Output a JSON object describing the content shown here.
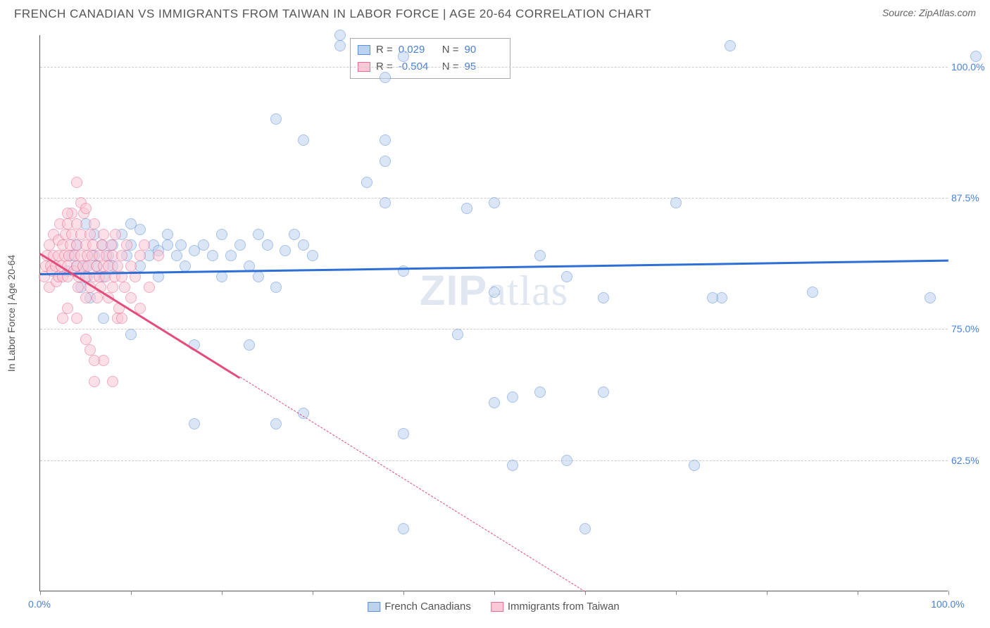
{
  "title": "FRENCH CANADIAN VS IMMIGRANTS FROM TAIWAN IN LABOR FORCE | AGE 20-64 CORRELATION CHART",
  "source": "Source: ZipAtlas.com",
  "watermark_a": "ZIP",
  "watermark_b": "atlas",
  "chart": {
    "type": "scatter",
    "xlim": [
      0,
      100
    ],
    "ylim": [
      50,
      103
    ],
    "x_axis_label_min": "0.0%",
    "x_axis_label_max": "100.0%",
    "y_axis_title": "In Labor Force | Age 20-64",
    "y_ticks": [
      {
        "v": 62.5,
        "label": "62.5%"
      },
      {
        "v": 75.0,
        "label": "75.0%"
      },
      {
        "v": 87.5,
        "label": "87.5%"
      },
      {
        "v": 100.0,
        "label": "100.0%"
      }
    ],
    "x_tick_positions": [
      0,
      10,
      20,
      30,
      40,
      50,
      60,
      70,
      80,
      90,
      100
    ],
    "grid_color": "#cccccc",
    "background_color": "#ffffff",
    "series": [
      {
        "id": "french",
        "name": "French Canadians",
        "marker_fill": "#bcd3f0",
        "marker_stroke": "#5f8fd6",
        "line_color": "#2e6fd6",
        "r_value": "0.029",
        "n_value": "90",
        "trend": {
          "x1": 0,
          "y1": 80.3,
          "x2": 100,
          "y2": 81.6,
          "solid_until_x": 100
        },
        "points": [
          [
            3,
            80.5
          ],
          [
            3.5,
            82
          ],
          [
            4,
            81
          ],
          [
            4,
            83
          ],
          [
            4.5,
            79
          ],
          [
            5,
            81
          ],
          [
            5,
            85
          ],
          [
            5.2,
            80
          ],
          [
            5.5,
            78
          ],
          [
            6,
            82
          ],
          [
            6,
            84
          ],
          [
            6.3,
            81
          ],
          [
            6.8,
            83
          ],
          [
            7,
            80
          ],
          [
            7.5,
            82
          ],
          [
            8,
            81
          ],
          [
            8,
            83
          ],
          [
            9,
            84
          ],
          [
            9.5,
            82
          ],
          [
            10,
            83
          ],
          [
            10,
            85
          ],
          [
            11,
            81
          ],
          [
            11,
            84.5
          ],
          [
            12,
            82
          ],
          [
            12.5,
            83
          ],
          [
            13,
            80
          ],
          [
            13,
            82.5
          ],
          [
            14,
            83
          ],
          [
            14,
            84
          ],
          [
            15,
            82
          ],
          [
            15.5,
            83
          ],
          [
            16,
            81
          ],
          [
            17,
            82.5
          ],
          [
            18,
            83
          ],
          [
            19,
            82
          ],
          [
            20,
            80
          ],
          [
            20,
            84
          ],
          [
            21,
            82
          ],
          [
            22,
            83
          ],
          [
            23,
            81
          ],
          [
            24,
            80
          ],
          [
            24,
            84
          ],
          [
            25,
            83
          ],
          [
            26,
            79
          ],
          [
            27,
            82.5
          ],
          [
            28,
            84
          ],
          [
            29,
            83
          ],
          [
            30,
            82
          ],
          [
            17,
            73.5
          ],
          [
            23,
            73.5
          ],
          [
            7,
            76
          ],
          [
            62,
            78
          ],
          [
            50,
            78.5
          ],
          [
            75,
            78
          ],
          [
            26,
            95
          ],
          [
            33,
            102
          ],
          [
            29,
            93
          ],
          [
            38,
            93
          ],
          [
            36,
            89
          ],
          [
            38,
            91
          ],
          [
            38,
            99
          ],
          [
            38,
            87
          ],
          [
            40,
            80.5
          ],
          [
            40,
            65
          ],
          [
            46,
            74.5
          ],
          [
            47,
            86.5
          ],
          [
            50,
            87
          ],
          [
            50,
            68
          ],
          [
            52,
            62
          ],
          [
            55,
            69
          ],
          [
            55,
            82
          ],
          [
            74,
            78
          ],
          [
            58,
            80
          ],
          [
            58,
            62.5
          ],
          [
            40,
            56
          ],
          [
            52,
            68.5
          ],
          [
            62,
            69
          ],
          [
            60,
            56
          ],
          [
            40,
            101
          ],
          [
            72,
            62
          ],
          [
            70,
            87
          ],
          [
            76,
            102
          ],
          [
            85,
            78.5
          ],
          [
            98,
            78
          ],
          [
            103,
            101
          ],
          [
            10,
            74.5
          ],
          [
            33,
            103
          ],
          [
            17,
            66
          ],
          [
            26,
            66
          ],
          [
            29,
            67
          ]
        ]
      },
      {
        "id": "taiwan",
        "name": "Immigrants from Taiwan",
        "marker_fill": "#fac8d6",
        "marker_stroke": "#e76b93",
        "line_color": "#e54b7b",
        "r_value": "-0.504",
        "n_value": "95",
        "trend": {
          "x1": 0,
          "y1": 82.3,
          "x2": 60,
          "y2": 50,
          "solid_until_x": 22
        },
        "points": [
          [
            0.5,
            80
          ],
          [
            0.6,
            81
          ],
          [
            0.8,
            82
          ],
          [
            1,
            83
          ],
          [
            1,
            79
          ],
          [
            1.2,
            81
          ],
          [
            1.3,
            80.5
          ],
          [
            1.5,
            82
          ],
          [
            1.5,
            84
          ],
          [
            1.7,
            81
          ],
          [
            1.8,
            79.5
          ],
          [
            2,
            80
          ],
          [
            2,
            82
          ],
          [
            2,
            83.5
          ],
          [
            2.2,
            85
          ],
          [
            2.3,
            81
          ],
          [
            2.5,
            80
          ],
          [
            2.5,
            83
          ],
          [
            2.7,
            82
          ],
          [
            2.8,
            84
          ],
          [
            3,
            81
          ],
          [
            3,
            80
          ],
          [
            3,
            85
          ],
          [
            3.2,
            82
          ],
          [
            3.3,
            83
          ],
          [
            3.5,
            84
          ],
          [
            3.5,
            86
          ],
          [
            3.7,
            80.5
          ],
          [
            3.8,
            82
          ],
          [
            4,
            81
          ],
          [
            4,
            83
          ],
          [
            4,
            85
          ],
          [
            4.2,
            79
          ],
          [
            4.3,
            80
          ],
          [
            4.5,
            82
          ],
          [
            4.5,
            84
          ],
          [
            4.7,
            81
          ],
          [
            4.8,
            86
          ],
          [
            5,
            83
          ],
          [
            5,
            80
          ],
          [
            5,
            78
          ],
          [
            5.2,
            82
          ],
          [
            5.3,
            81
          ],
          [
            5.5,
            84
          ],
          [
            5.5,
            79
          ],
          [
            5.7,
            82
          ],
          [
            5.8,
            83
          ],
          [
            6,
            80
          ],
          [
            6,
            85
          ],
          [
            6.2,
            81
          ],
          [
            6.3,
            78
          ],
          [
            6.5,
            82
          ],
          [
            6.5,
            80
          ],
          [
            6.7,
            79
          ],
          [
            6.8,
            83
          ],
          [
            7,
            81
          ],
          [
            7,
            84
          ],
          [
            7.2,
            80
          ],
          [
            7.3,
            82
          ],
          [
            7.5,
            78
          ],
          [
            7.5,
            81
          ],
          [
            7.8,
            83
          ],
          [
            8,
            82
          ],
          [
            8,
            79
          ],
          [
            8.2,
            80
          ],
          [
            8.3,
            84
          ],
          [
            8.5,
            81
          ],
          [
            8.7,
            77
          ],
          [
            9,
            82
          ],
          [
            9,
            80
          ],
          [
            9.3,
            79
          ],
          [
            9.5,
            83
          ],
          [
            10,
            81
          ],
          [
            10,
            78
          ],
          [
            10.5,
            80
          ],
          [
            11,
            77
          ],
          [
            11,
            82
          ],
          [
            11.5,
            83
          ],
          [
            12,
            79
          ],
          [
            13,
            82
          ],
          [
            2.5,
            76
          ],
          [
            3,
            77
          ],
          [
            4,
            76
          ],
          [
            5,
            74
          ],
          [
            5.5,
            73
          ],
          [
            6,
            70
          ],
          [
            7,
            72
          ],
          [
            8,
            70
          ],
          [
            8.5,
            76
          ],
          [
            4,
            89
          ],
          [
            4.5,
            87
          ],
          [
            5,
            86.5
          ],
          [
            3,
            86
          ],
          [
            6,
            72
          ],
          [
            9,
            76
          ]
        ]
      }
    ]
  }
}
